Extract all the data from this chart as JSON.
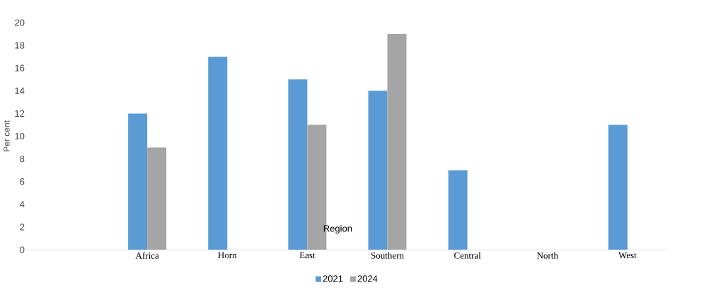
{
  "chart_data": {
    "type": "bar",
    "xlabel": "Region",
    "ylabel": "Per cent",
    "categories": [
      null,
      "Africa",
      "Horn",
      "East",
      "Southern",
      "Central",
      "North",
      "West"
    ],
    "series": [
      {
        "name": "2021",
        "color": "#5b9bd5",
        "values": [
          null,
          12,
          17,
          15,
          14,
          7,
          null,
          11
        ]
      },
      {
        "name": "2024",
        "color": "#a5a5a5",
        "values": [
          null,
          9,
          null,
          11,
          19,
          null,
          null,
          null
        ]
      }
    ],
    "ylim": [
      0,
      20
    ],
    "yticks": [
      0,
      2,
      4,
      6,
      8,
      10,
      12,
      14,
      16,
      18,
      20
    ],
    "grid": false,
    "legend": "bottom"
  }
}
